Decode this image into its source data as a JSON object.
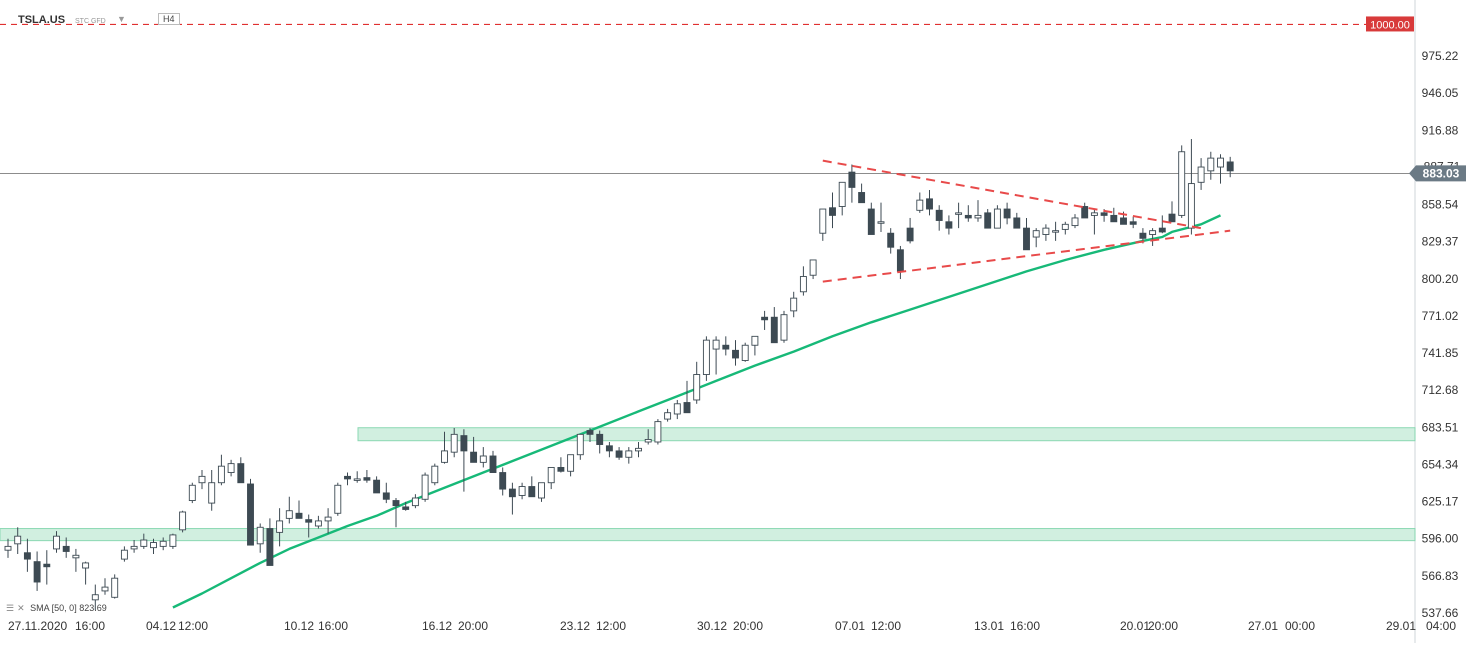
{
  "header": {
    "symbol": "TSLA.US",
    "source": "STC GFD",
    "dropdown_arrow": "▼",
    "timeframe": "H4"
  },
  "indicator_legend": {
    "icons": [
      "list-icon",
      "close-icon"
    ],
    "label": "SMA",
    "params": "[50, 0]",
    "value": "823.69"
  },
  "price_labels": {
    "resistance": "1000.00",
    "current": "883.03",
    "hidden_behind_current": "887.71"
  },
  "colors": {
    "bull_body": "#ffffff",
    "bear_body": "#3d4a53",
    "wick": "#3d4a53",
    "sma": "#17b978",
    "zone_fill": "#cdeedd",
    "zone_stroke": "#7fd4ab",
    "trendline": "#e84a4a",
    "resistance": "#e03030",
    "current_line": "#666666",
    "current_label_bg": "#6b7a85"
  },
  "chart_data": {
    "type": "candlestick",
    "instrument": "TSLA.US",
    "timeframe": "H4",
    "y_axis": {
      "ticks": [
        975.22,
        946.05,
        916.88,
        858.54,
        829.37,
        800.2,
        771.02,
        741.85,
        712.68,
        683.51,
        654.34,
        625.17,
        596.0,
        566.83,
        537.66
      ],
      "range": [
        535,
        1012
      ]
    },
    "x_axis": {
      "ticks": [
        "27.11.2020",
        "16:00",
        "04.12",
        "12:00",
        "10.12",
        "16:00",
        "16.12",
        "20:00",
        "23.12",
        "12:00",
        "30.12",
        "20:00",
        "07.01",
        "12:00",
        "13.01",
        "16:00",
        "20.01",
        "20:00",
        "27.01",
        "00:00",
        "29.01",
        "04:00"
      ]
    },
    "candles_ohlc": [
      [
        587,
        596,
        581,
        590
      ],
      [
        592,
        605,
        584,
        598
      ],
      [
        585,
        596,
        570,
        580
      ],
      [
        578,
        586,
        555,
        562
      ],
      [
        576,
        587,
        560,
        574
      ],
      [
        588,
        602,
        585,
        598
      ],
      [
        590,
        597,
        581,
        586
      ],
      [
        581,
        588,
        570,
        583
      ],
      [
        573,
        578,
        560,
        577
      ],
      [
        548,
        560,
        540,
        552
      ],
      [
        555,
        565,
        552,
        558
      ],
      [
        550,
        568,
        549,
        565
      ],
      [
        580,
        590,
        578,
        587
      ],
      [
        588,
        595,
        585,
        590
      ],
      [
        590,
        600,
        588,
        595
      ],
      [
        589,
        596,
        584,
        593
      ],
      [
        590,
        597,
        587,
        594
      ],
      [
        590,
        600,
        588,
        599
      ],
      [
        603,
        618,
        601,
        617
      ],
      [
        626,
        640,
        624,
        638
      ],
      [
        640,
        650,
        635,
        645
      ],
      [
        624,
        650,
        618,
        640
      ],
      [
        640,
        662,
        638,
        653
      ],
      [
        648,
        658,
        645,
        655
      ],
      [
        655,
        660,
        640,
        640
      ],
      [
        639,
        643,
        591,
        591
      ],
      [
        592,
        608,
        585,
        605
      ],
      [
        604,
        612,
        580,
        575
      ],
      [
        601,
        620,
        590,
        610
      ],
      [
        612,
        629,
        608,
        618
      ],
      [
        616,
        626,
        612,
        612
      ],
      [
        611,
        615,
        597,
        609
      ],
      [
        606,
        614,
        604,
        610
      ],
      [
        610,
        620,
        600,
        613
      ],
      [
        616,
        640,
        614,
        638
      ],
      [
        645,
        648,
        638,
        643
      ],
      [
        643,
        649,
        640,
        643
      ],
      [
        644,
        650,
        640,
        642
      ],
      [
        642,
        645,
        632,
        632
      ],
      [
        632,
        640,
        624,
        627
      ],
      [
        626,
        628,
        605,
        622
      ],
      [
        621,
        625,
        618,
        619
      ],
      [
        622,
        631,
        620,
        628
      ],
      [
        627,
        648,
        625,
        646
      ],
      [
        640,
        655,
        638,
        653
      ],
      [
        656,
        680,
        655,
        665
      ],
      [
        664,
        683,
        660,
        678
      ],
      [
        677,
        682,
        633,
        665
      ],
      [
        664,
        676,
        658,
        656
      ],
      [
        656,
        668,
        652,
        661
      ],
      [
        661,
        665,
        650,
        648
      ],
      [
        648,
        652,
        630,
        635
      ],
      [
        635,
        640,
        615,
        629
      ],
      [
        630,
        640,
        627,
        637
      ],
      [
        637,
        645,
        630,
        629
      ],
      [
        628,
        638,
        625,
        640
      ],
      [
        640,
        650,
        635,
        652
      ],
      [
        652,
        660,
        648,
        649
      ],
      [
        649,
        662,
        645,
        662
      ],
      [
        662,
        675,
        658,
        678
      ],
      [
        681,
        683,
        672,
        678
      ],
      [
        678,
        681,
        663,
        670
      ],
      [
        669,
        672,
        660,
        665
      ],
      [
        665,
        668,
        658,
        660
      ],
      [
        660,
        668,
        655,
        665
      ],
      [
        665,
        672,
        660,
        667
      ],
      [
        672,
        682,
        670,
        674
      ],
      [
        672,
        690,
        670,
        688
      ],
      [
        690,
        698,
        688,
        695
      ],
      [
        694,
        705,
        690,
        702
      ],
      [
        703,
        720,
        700,
        695
      ],
      [
        705,
        735,
        702,
        725
      ],
      [
        725,
        755,
        720,
        752
      ],
      [
        745,
        755,
        725,
        752
      ],
      [
        748,
        755,
        740,
        745
      ],
      [
        744,
        752,
        732,
        738
      ],
      [
        736,
        750,
        735,
        748
      ],
      [
        748,
        755,
        740,
        755
      ],
      [
        770,
        775,
        760,
        768
      ],
      [
        770,
        778,
        750,
        750
      ],
      [
        752,
        775,
        750,
        772
      ],
      [
        775,
        790,
        770,
        785
      ],
      [
        790,
        810,
        787,
        802
      ],
      [
        803,
        815,
        800,
        815
      ],
      [
        836,
        850,
        830,
        855
      ],
      [
        856,
        868,
        840,
        850
      ],
      [
        857,
        875,
        850,
        876
      ],
      [
        884,
        890,
        860,
        872
      ],
      [
        868,
        875,
        860,
        860
      ],
      [
        855,
        860,
        835,
        835
      ],
      [
        845,
        860,
        837,
        845
      ],
      [
        836,
        840,
        820,
        825
      ],
      [
        823,
        826,
        800,
        806
      ],
      [
        840,
        848,
        828,
        830
      ],
      [
        854,
        868,
        852,
        862
      ],
      [
        863,
        870,
        850,
        855
      ],
      [
        854,
        858,
        838,
        846
      ],
      [
        845,
        850,
        835,
        840
      ],
      [
        852,
        860,
        840,
        852
      ],
      [
        850,
        858,
        845,
        848
      ],
      [
        848,
        862,
        845,
        850
      ],
      [
        852,
        855,
        840,
        840
      ],
      [
        840,
        858,
        840,
        855
      ],
      [
        855,
        860,
        843,
        848
      ],
      [
        848,
        852,
        840,
        840
      ],
      [
        840,
        848,
        825,
        823
      ],
      [
        833,
        840,
        825,
        838
      ],
      [
        835,
        843,
        830,
        840
      ],
      [
        838,
        845,
        830,
        838
      ],
      [
        839,
        845,
        835,
        843
      ],
      [
        842,
        851,
        840,
        848
      ],
      [
        857,
        860,
        850,
        848
      ],
      [
        850,
        855,
        835,
        852
      ],
      [
        852,
        855,
        845,
        850
      ],
      [
        850,
        856,
        846,
        845
      ],
      [
        848,
        853,
        843,
        843
      ],
      [
        845,
        849,
        840,
        843
      ],
      [
        836,
        840,
        828,
        832
      ],
      [
        835,
        840,
        826,
        838
      ],
      [
        840,
        850,
        836,
        837
      ],
      [
        851,
        861,
        845,
        845
      ],
      [
        850,
        905,
        848,
        900
      ],
      [
        840,
        910,
        835,
        875
      ],
      [
        876,
        895,
        870,
        888
      ],
      [
        885,
        900,
        878,
        895
      ],
      [
        888,
        898,
        875,
        895
      ],
      [
        892,
        896,
        880,
        885
      ]
    ],
    "sma_50": [
      [
        17,
        542
      ],
      [
        20,
        553
      ],
      [
        23,
        565
      ],
      [
        26,
        577
      ],
      [
        29,
        588
      ],
      [
        32,
        597
      ],
      [
        35,
        606
      ],
      [
        38,
        614
      ],
      [
        41,
        624
      ],
      [
        45,
        636
      ],
      [
        49,
        648
      ],
      [
        53,
        660
      ],
      [
        57,
        672
      ],
      [
        61,
        684
      ],
      [
        65,
        696
      ],
      [
        69,
        708
      ],
      [
        73,
        720
      ],
      [
        77,
        732
      ],
      [
        81,
        743
      ],
      [
        85,
        755
      ],
      [
        89,
        766
      ],
      [
        93,
        776
      ],
      [
        97,
        786
      ],
      [
        101,
        796
      ],
      [
        105,
        806
      ],
      [
        109,
        815
      ],
      [
        113,
        823
      ],
      [
        117,
        830
      ],
      [
        119,
        833
      ],
      [
        120,
        837
      ],
      [
        123,
        843
      ],
      [
        125,
        850
      ]
    ],
    "zones": [
      {
        "name": "resistance-zone",
        "y_top": 683.2,
        "y_bottom": 673.0
      },
      {
        "name": "support-zone",
        "y_top": 604.0,
        "y_bottom": 594.5
      }
    ],
    "levels": [
      {
        "name": "resistance-1000",
        "value": 1000.0
      },
      {
        "name": "current-price",
        "value": 883.03
      }
    ],
    "triangle_lines": [
      {
        "name": "upper-trendline",
        "from": [
          84,
          893
        ],
        "to": [
          123,
          840
        ]
      },
      {
        "name": "lower-trendline",
        "from": [
          84,
          798
        ],
        "to": [
          126,
          838
        ]
      }
    ]
  }
}
